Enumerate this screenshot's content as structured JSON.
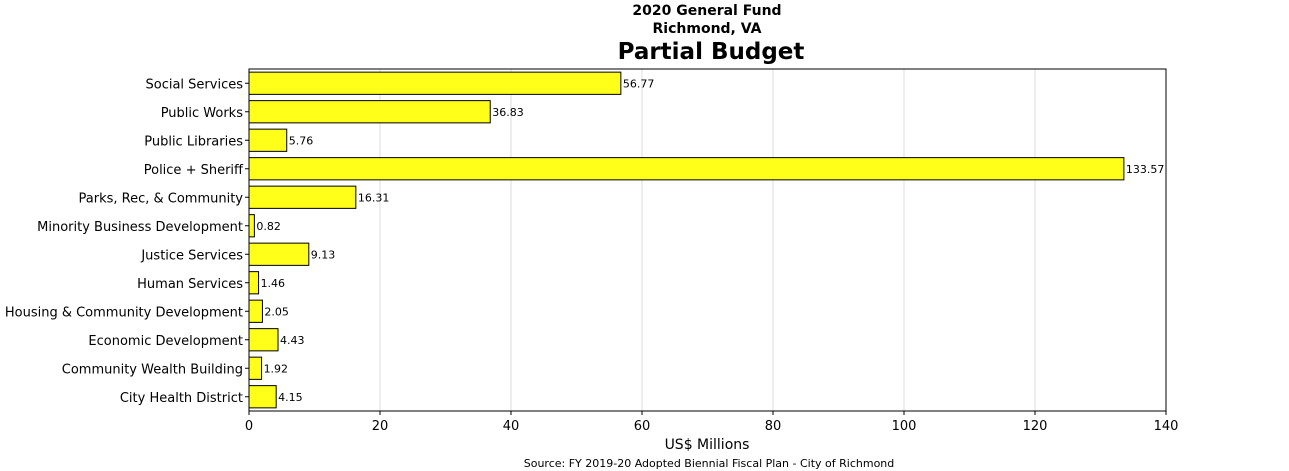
{
  "chart_data": {
    "type": "bar",
    "orientation": "horizontal",
    "supertitle_line1": "2020 General Fund",
    "supertitle_line2": "Richmond, VA",
    "title": "Partial Budget",
    "xlabel": "US$ Millions",
    "source": "Source: FY 2019-20 Adopted Biennial Fiscal Plan - City of Richmond",
    "xlim": [
      0,
      140
    ],
    "xticks": [
      0,
      20,
      40,
      60,
      80,
      100,
      120,
      140
    ],
    "grid": "vertical",
    "bar_color": "#ffff1a",
    "categories": [
      "Social Services",
      "Public Works",
      "Public Libraries",
      "Police + Sheriff",
      "Parks, Rec, & Community",
      "Minority Business Development",
      "Justice Services",
      "Human Services",
      "Housing & Community Development",
      "Economic Development",
      "Community Wealth Building",
      "City Health District"
    ],
    "values": [
      56.77,
      36.83,
      5.76,
      133.57,
      16.31,
      0.82,
      9.13,
      1.46,
      2.05,
      4.43,
      1.92,
      4.15
    ],
    "value_labels": [
      "56.77",
      "36.83",
      "5.76",
      "133.57",
      "16.31",
      "0.82",
      "9.13",
      "1.46",
      "2.05",
      "4.43",
      "1.92",
      "4.15"
    ]
  }
}
